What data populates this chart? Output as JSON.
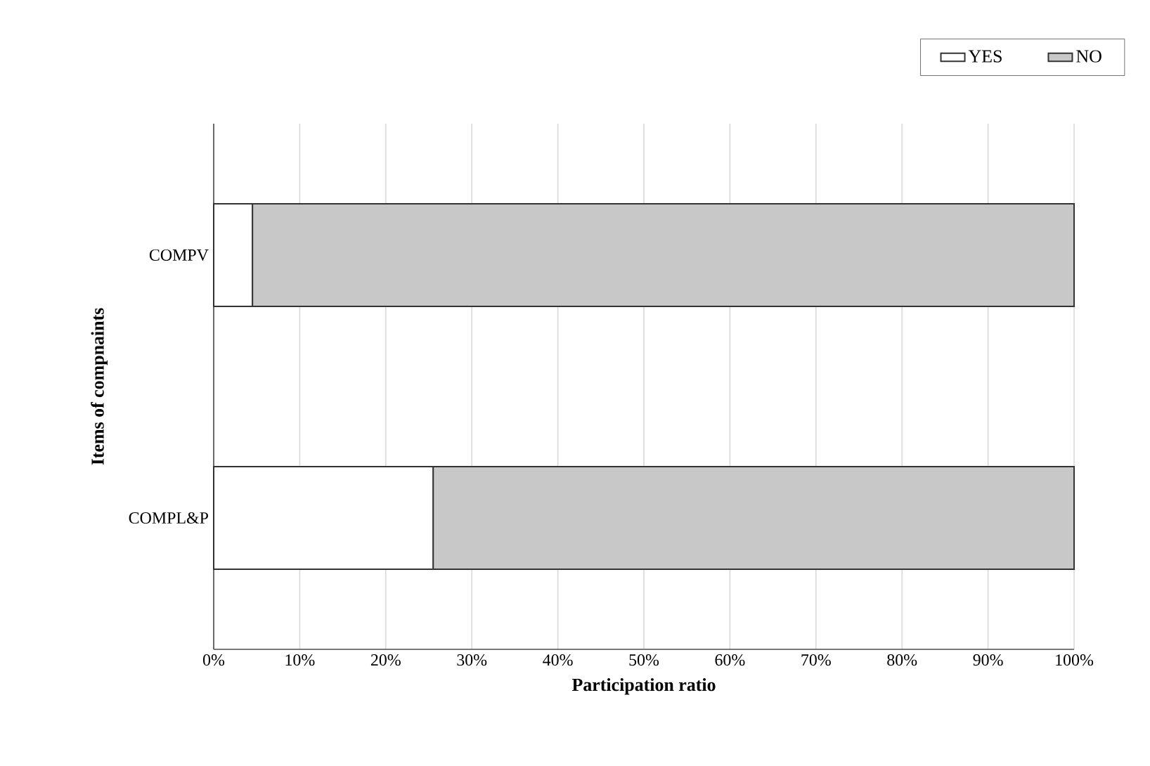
{
  "chart_data": {
    "type": "bar",
    "orientation": "horizontal",
    "stacked": true,
    "xlabel": "Participation ratio",
    "ylabel": "Items of compnaints",
    "categories": [
      "COMPV",
      "COMPL&P"
    ],
    "series": [
      {
        "name": "YES",
        "color": "#ffffff",
        "values": [
          4.5,
          25.5
        ]
      },
      {
        "name": "NO",
        "color": "#c8c8c8",
        "values": [
          95.5,
          74.5
        ]
      }
    ],
    "xlim": [
      0,
      100
    ],
    "xticks": [
      {
        "value": 0,
        "label": "0%"
      },
      {
        "value": 10,
        "label": "10%"
      },
      {
        "value": 20,
        "label": "20%"
      },
      {
        "value": 30,
        "label": "30%"
      },
      {
        "value": 40,
        "label": "40%"
      },
      {
        "value": 50,
        "label": "50%"
      },
      {
        "value": 60,
        "label": "60%"
      },
      {
        "value": 70,
        "label": "70%"
      },
      {
        "value": 80,
        "label": "80%"
      },
      {
        "value": 90,
        "label": "90%"
      },
      {
        "value": 100,
        "label": "100%"
      }
    ],
    "grid": "x",
    "legend": "top right"
  }
}
